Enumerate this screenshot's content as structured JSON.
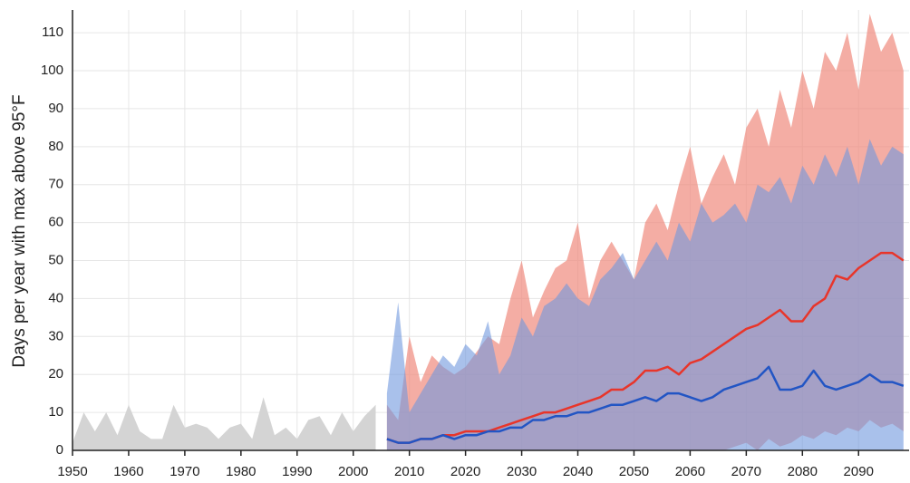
{
  "chart_data": {
    "type": "line",
    "y_label": "Days per year with max above 95°F",
    "xlim": [
      1950,
      2099
    ],
    "ylim": [
      0,
      116
    ],
    "xticks": [
      1950,
      1960,
      1970,
      1980,
      1990,
      2000,
      2010,
      2020,
      2030,
      2040,
      2050,
      2060,
      2070,
      2080,
      2090
    ],
    "yticks": [
      0,
      10,
      20,
      30,
      40,
      50,
      60,
      70,
      80,
      90,
      100,
      110
    ],
    "grid": true,
    "series": [
      {
        "kind": "area",
        "color": "#d4d4d4",
        "x": [
          1950,
          1952,
          1954,
          1956,
          1958,
          1960,
          1962,
          1964,
          1966,
          1968,
          1970,
          1972,
          1974,
          1976,
          1978,
          1980,
          1982,
          1984,
          1986,
          1988,
          1990,
          1992,
          1994,
          1996,
          1998,
          2000,
          2002,
          2004
        ],
        "values": [
          2,
          10,
          5,
          10,
          4,
          12,
          5,
          3,
          3,
          12,
          6,
          7,
          6,
          3,
          6,
          7,
          3,
          14,
          4,
          6,
          3,
          8,
          9,
          4,
          10,
          5,
          9,
          12
        ]
      },
      {
        "kind": "area",
        "color": "#f08a7e",
        "x": [
          2006,
          2008,
          2010,
          2012,
          2014,
          2016,
          2018,
          2020,
          2022,
          2024,
          2026,
          2028,
          2030,
          2032,
          2034,
          2036,
          2038,
          2040,
          2042,
          2044,
          2046,
          2048,
          2050,
          2052,
          2054,
          2056,
          2058,
          2060,
          2062,
          2064,
          2066,
          2068,
          2070,
          2072,
          2074,
          2076,
          2078,
          2080,
          2082,
          2084,
          2086,
          2088,
          2090,
          2092,
          2094,
          2096,
          2098
        ],
        "values": [
          12,
          8,
          30,
          18,
          25,
          22,
          20,
          22,
          26,
          30,
          28,
          40,
          50,
          35,
          42,
          48,
          50,
          60,
          40,
          50,
          55,
          50,
          45,
          60,
          65,
          58,
          70,
          80,
          65,
          72,
          78,
          70,
          85,
          90,
          80,
          95,
          85,
          100,
          90,
          105,
          100,
          110,
          95,
          115,
          105,
          110,
          100
        ],
        "lower": [
          0,
          0,
          0,
          0,
          0,
          0,
          0,
          0,
          0,
          0,
          0,
          0,
          0,
          0,
          0,
          0,
          0,
          0,
          0,
          0,
          0,
          0,
          0,
          0,
          0,
          0,
          0,
          0,
          0,
          0,
          0,
          1,
          2,
          0,
          3,
          1,
          2,
          4,
          3,
          5,
          4,
          6,
          5,
          8,
          6,
          7,
          5
        ]
      },
      {
        "kind": "area",
        "color": "#6f97de",
        "x": [
          2006,
          2008,
          2010,
          2012,
          2014,
          2016,
          2018,
          2020,
          2022,
          2024,
          2026,
          2028,
          2030,
          2032,
          2034,
          2036,
          2038,
          2040,
          2042,
          2044,
          2046,
          2048,
          2050,
          2052,
          2054,
          2056,
          2058,
          2060,
          2062,
          2064,
          2066,
          2068,
          2070,
          2072,
          2074,
          2076,
          2078,
          2080,
          2082,
          2084,
          2086,
          2088,
          2090,
          2092,
          2094,
          2096,
          2098
        ],
        "values": [
          15,
          39,
          10,
          15,
          20,
          25,
          22,
          28,
          25,
          34,
          20,
          25,
          35,
          30,
          38,
          40,
          44,
          40,
          38,
          45,
          48,
          52,
          45,
          50,
          55,
          50,
          60,
          55,
          65,
          60,
          62,
          65,
          60,
          70,
          68,
          72,
          65,
          75,
          70,
          78,
          72,
          80,
          70,
          82,
          75,
          80,
          78
        ]
      },
      {
        "kind": "line",
        "color": "#e8352a",
        "x": [
          2006,
          2008,
          2010,
          2012,
          2014,
          2016,
          2018,
          2020,
          2022,
          2024,
          2026,
          2028,
          2030,
          2032,
          2034,
          2036,
          2038,
          2040,
          2042,
          2044,
          2046,
          2048,
          2050,
          2052,
          2054,
          2056,
          2058,
          2060,
          2062,
          2064,
          2066,
          2068,
          2070,
          2072,
          2074,
          2076,
          2078,
          2080,
          2082,
          2084,
          2086,
          2088,
          2090,
          2092,
          2094,
          2096,
          2098
        ],
        "values": [
          3,
          2,
          2,
          3,
          3,
          4,
          4,
          5,
          5,
          5,
          6,
          7,
          8,
          9,
          10,
          10,
          11,
          12,
          13,
          14,
          16,
          16,
          18,
          21,
          21,
          22,
          20,
          23,
          24,
          26,
          28,
          30,
          32,
          33,
          35,
          37,
          34,
          34,
          38,
          40,
          46,
          45,
          48,
          50,
          52,
          52,
          50
        ]
      },
      {
        "kind": "line",
        "color": "#2255c4",
        "x": [
          2006,
          2008,
          2010,
          2012,
          2014,
          2016,
          2018,
          2020,
          2022,
          2024,
          2026,
          2028,
          2030,
          2032,
          2034,
          2036,
          2038,
          2040,
          2042,
          2044,
          2046,
          2048,
          2050,
          2052,
          2054,
          2056,
          2058,
          2060,
          2062,
          2064,
          2066,
          2068,
          2070,
          2072,
          2074,
          2076,
          2078,
          2080,
          2082,
          2084,
          2086,
          2088,
          2090,
          2092,
          2094,
          2096,
          2098
        ],
        "values": [
          3,
          2,
          2,
          3,
          3,
          4,
          3,
          4,
          4,
          5,
          5,
          6,
          6,
          8,
          8,
          9,
          9,
          10,
          10,
          11,
          12,
          12,
          13,
          14,
          13,
          15,
          15,
          14,
          13,
          14,
          16,
          17,
          18,
          19,
          22,
          16,
          16,
          17,
          21,
          17,
          16,
          17,
          18,
          20,
          18,
          18,
          17
        ]
      }
    ]
  }
}
